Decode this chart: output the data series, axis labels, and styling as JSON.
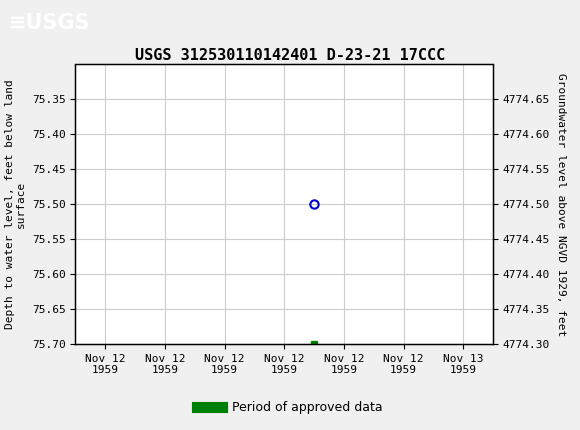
{
  "title": "USGS 312530110142401 D-23-21 17CCC",
  "xlabel_dates": [
    "Nov 12\n1959",
    "Nov 12\n1959",
    "Nov 12\n1959",
    "Nov 12\n1959",
    "Nov 12\n1959",
    "Nov 12\n1959",
    "Nov 13\n1959"
  ],
  "ylabel_left": "Depth to water level, feet below land\nsurface",
  "ylabel_right": "Groundwater level above NGVD 1929, feet",
  "ylim_left": [
    75.7,
    75.3
  ],
  "ylim_right": [
    4774.3,
    4774.7
  ],
  "yticks_left": [
    75.35,
    75.4,
    75.45,
    75.5,
    75.55,
    75.6,
    75.65,
    75.7
  ],
  "yticks_right": [
    4774.65,
    4774.6,
    4774.55,
    4774.5,
    4774.45,
    4774.4,
    4774.35,
    4774.3
  ],
  "circle_point_x": 3.5,
  "circle_point_y": 75.5,
  "green_point_x": 3.5,
  "green_point_y": 75.7,
  "header_color": "#1a6b3c",
  "header_text_color": "#ffffff",
  "grid_color": "#cccccc",
  "background_color": "#f0f0f0",
  "plot_bg_color": "#ffffff",
  "circle_color": "#0000cd",
  "green_color": "#008000",
  "legend_label": "Period of approved data",
  "x_positions": [
    0,
    1,
    2,
    3,
    4,
    5,
    6
  ],
  "xlim": [
    -0.5,
    6.5
  ]
}
